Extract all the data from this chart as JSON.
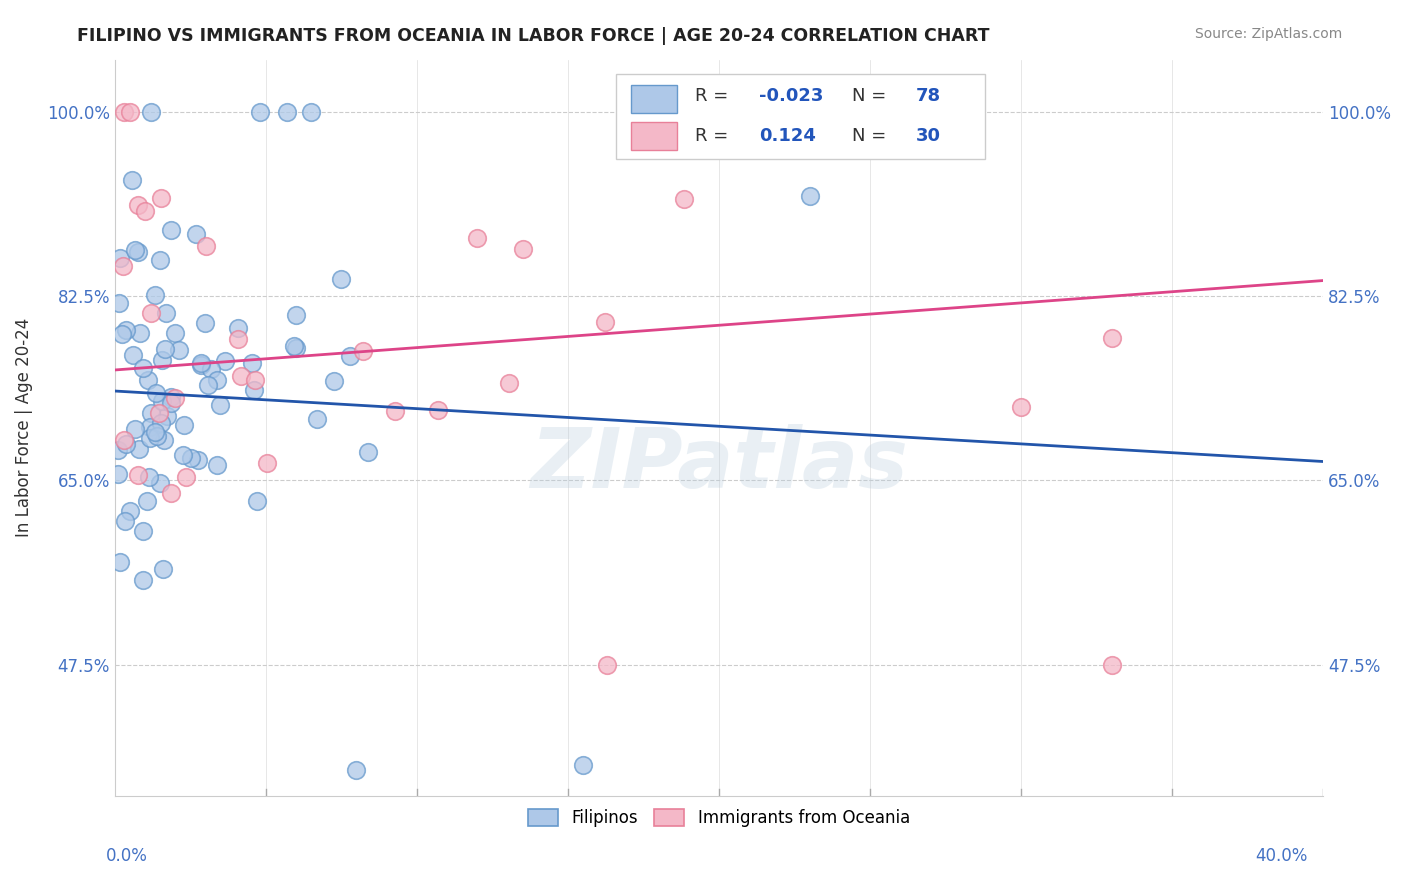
{
  "title": "FILIPINO VS IMMIGRANTS FROM OCEANIA IN LABOR FORCE | AGE 20-24 CORRELATION CHART",
  "source": "Source: ZipAtlas.com",
  "ylabel": "In Labor Force | Age 20-24",
  "xlim": [
    0.0,
    0.4
  ],
  "ylim": [
    0.35,
    1.05
  ],
  "yticks": [
    0.475,
    0.65,
    0.825,
    1.0
  ],
  "ytick_labels": [
    "47.5%",
    "65.0%",
    "82.5%",
    "100.0%"
  ],
  "blue_R": -0.023,
  "blue_N": 78,
  "pink_R": 0.124,
  "pink_N": 30,
  "blue_face_color": "#aec8e8",
  "blue_edge_color": "#6699cc",
  "pink_face_color": "#f4b8c8",
  "pink_edge_color": "#e88099",
  "blue_line_color": "#2255aa",
  "pink_line_color": "#dd4488",
  "watermark": "ZIPatlas",
  "legend_text_color": "#2255bb",
  "legend_label_color": "#333333"
}
